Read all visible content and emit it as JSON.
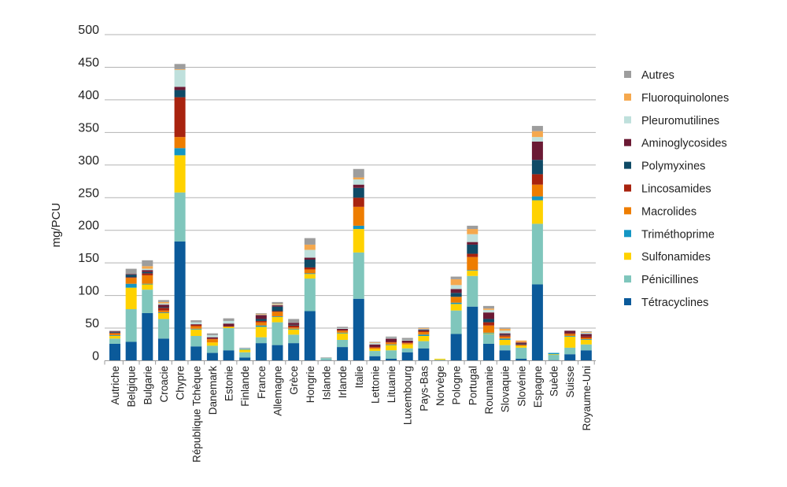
{
  "chart_data": {
    "type": "bar",
    "stacked": true,
    "title": "",
    "xlabel": "",
    "ylabel": "mg/PCU",
    "ylim": [
      0,
      500
    ],
    "yticks": [
      0,
      50,
      100,
      150,
      200,
      250,
      300,
      350,
      400,
      450,
      500
    ],
    "grid": true,
    "legend_position": "right",
    "categories": [
      "Autriche",
      "Belgique",
      "Bulgarie",
      "Croacie",
      "Chypre",
      "République Tchèque",
      "Danemark",
      "Estonie",
      "Finlande",
      "France",
      "Allemagne",
      "Grèce",
      "Hongrie",
      "Islande",
      "Irlande",
      "Italie",
      "Lettonie",
      "Lituanie",
      "Luxembourg",
      "Pays-Bas",
      "Norvège",
      "Pologne",
      "Portugal",
      "Roumanie",
      "Slovaquie",
      "Slovénie",
      "Espagne",
      "Suède",
      "Suisse",
      "Royaume-Uni"
    ],
    "series": [
      {
        "name": "Tétracyclines",
        "color": "#0b5a9a",
        "values": [
          26,
          29,
          73,
          34,
          183,
          22,
          12,
          16,
          5,
          27,
          24,
          27,
          76,
          1,
          21,
          95,
          7,
          3,
          13,
          19,
          0,
          41,
          83,
          26,
          16,
          3,
          117,
          1,
          10,
          16
        ]
      },
      {
        "name": "Pénicillines",
        "color": "#7fc6bc",
        "values": [
          8,
          50,
          36,
          30,
          75,
          16,
          11,
          34,
          8,
          9,
          35,
          13,
          50,
          3,
          11,
          71,
          8,
          13,
          6,
          11,
          1.5,
          36,
          47,
          15,
          8,
          17,
          93,
          8,
          10,
          9
        ]
      },
      {
        "name": "Sulfonamides",
        "color": "#ffd200",
        "values": [
          4,
          33,
          8,
          9,
          57,
          10,
          5,
          2,
          4,
          16,
          8,
          8,
          7,
          0,
          10,
          36,
          3,
          8,
          6,
          8,
          1.5,
          10,
          8,
          1,
          8,
          3,
          36,
          1,
          17,
          7
        ]
      },
      {
        "name": "Triméthoprime",
        "color": "#1496c4",
        "values": [
          1,
          6,
          1,
          1,
          11,
          1,
          0,
          0,
          1,
          2,
          1,
          1,
          1,
          0,
          1,
          5,
          0,
          1,
          0,
          2,
          0,
          2,
          1,
          1,
          2,
          0,
          6,
          2,
          1,
          1
        ]
      },
      {
        "name": "Macrolides",
        "color": "#ee7d00",
        "values": [
          3,
          9,
          13,
          3,
          17,
          4,
          5,
          0,
          0,
          5,
          7,
          2,
          6,
          0,
          3,
          29,
          2,
          3,
          2,
          4,
          0,
          9,
          20,
          11,
          3,
          1,
          18,
          0,
          3,
          2
        ]
      },
      {
        "name": "Lincosamides",
        "color": "#a8230f",
        "values": [
          1,
          1,
          3,
          4,
          61,
          2,
          1,
          1,
          0,
          2,
          1,
          3,
          3,
          0,
          1,
          14,
          1,
          1,
          1,
          2,
          0,
          0,
          5,
          5,
          2,
          1,
          16,
          0,
          1,
          2
        ]
      },
      {
        "name": "Polymyxines",
        "color": "#0f4a66",
        "values": [
          1,
          4,
          2,
          1,
          11,
          0,
          0,
          0,
          0,
          3,
          7,
          1,
          12,
          0,
          0,
          15,
          0,
          0,
          0,
          1,
          0,
          6,
          14,
          5,
          1,
          1,
          22,
          0,
          0,
          0
        ]
      },
      {
        "name": "Aminoglycosides",
        "color": "#6b1a34",
        "values": [
          1,
          1,
          3,
          4,
          5,
          1,
          2,
          4,
          0,
          6,
          2,
          3,
          3,
          0,
          2,
          5,
          4,
          5,
          3,
          1,
          0,
          6,
          4,
          10,
          2,
          2,
          28,
          0,
          4,
          4
        ]
      },
      {
        "name": "Pleuromutilines",
        "color": "#bfe0dc",
        "values": [
          0,
          0,
          2,
          2,
          26,
          3,
          3,
          4,
          1,
          1,
          1,
          0,
          12,
          0,
          1,
          8,
          2,
          1,
          1,
          1,
          0,
          6,
          12,
          4,
          4,
          0,
          7,
          0,
          0,
          2
        ]
      },
      {
        "name": "Fluoroquinolones",
        "color": "#f5a84d",
        "values": [
          0,
          0,
          4,
          2,
          1,
          0,
          0,
          0,
          0,
          1,
          1,
          0,
          8,
          0,
          0,
          3,
          1,
          0,
          0,
          1,
          0,
          9,
          8,
          2,
          3,
          3,
          9,
          0,
          0,
          1
        ]
      },
      {
        "name": "Autres",
        "color": "#9d9d9d",
        "values": [
          1,
          8,
          9,
          3,
          8,
          3,
          3,
          4,
          1,
          1,
          3,
          6,
          10,
          1,
          2,
          13,
          1,
          2,
          3,
          1,
          0,
          4,
          5,
          4,
          2,
          0,
          8,
          0,
          0,
          1
        ]
      }
    ]
  }
}
